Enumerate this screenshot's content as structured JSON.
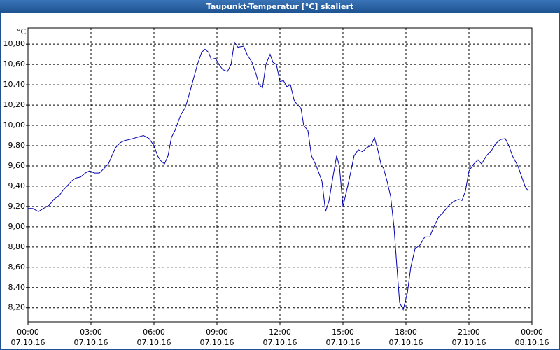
{
  "chart_data": {
    "type": "line",
    "title": "Taupunkt-Temperatur [°C] skaliert",
    "y_label": "°C",
    "color": "#0000b0",
    "grid": true,
    "xlim": [
      0,
      24
    ],
    "xticks": [
      {
        "value": 0,
        "label": "00:00",
        "sublabel": "07.10.16"
      },
      {
        "value": 3,
        "label": "03:00",
        "sublabel": "07.10.16"
      },
      {
        "value": 6,
        "label": "06:00",
        "sublabel": "07.10.16"
      },
      {
        "value": 9,
        "label": "09:00",
        "sublabel": "07.10.16"
      },
      {
        "value": 12,
        "label": "12:00",
        "sublabel": "07.10.16"
      },
      {
        "value": 15,
        "label": "15:00",
        "sublabel": "07.10.16"
      },
      {
        "value": 18,
        "label": "18:00",
        "sublabel": "07.10.16"
      },
      {
        "value": 21,
        "label": "21:00",
        "sublabel": "07.10.16"
      },
      {
        "value": 24,
        "label": "00:00",
        "sublabel": "08.10.16"
      }
    ],
    "ylim": [
      8.06,
      10.96
    ],
    "yticks": [
      {
        "value": 8.2,
        "label": "8,20"
      },
      {
        "value": 8.4,
        "label": "8,40"
      },
      {
        "value": 8.6,
        "label": "8,60"
      },
      {
        "value": 8.8,
        "label": "8,80"
      },
      {
        "value": 9.0,
        "label": "9,00"
      },
      {
        "value": 9.2,
        "label": "9,20"
      },
      {
        "value": 9.4,
        "label": "9,40"
      },
      {
        "value": 9.6,
        "label": "9,60"
      },
      {
        "value": 9.8,
        "label": "9,80"
      },
      {
        "value": 10.0,
        "label": "10,00"
      },
      {
        "value": 10.2,
        "label": "10,20"
      },
      {
        "value": 10.4,
        "label": "10,40"
      },
      {
        "value": 10.6,
        "label": "10,60"
      },
      {
        "value": 10.8,
        "label": "10,80"
      }
    ],
    "x": [
      0,
      0.23,
      0.5,
      0.73,
      1,
      1.23,
      1.5,
      1.67,
      1.9,
      2.07,
      2.27,
      2.5,
      2.73,
      2.93,
      3.17,
      3.4,
      3.6,
      3.83,
      4,
      4.17,
      4.4,
      4.6,
      4.83,
      5.17,
      5.5,
      5.77,
      6,
      6.17,
      6.33,
      6.5,
      6.67,
      6.83,
      7,
      7.27,
      7.5,
      7.67,
      7.87,
      8.07,
      8.27,
      8.43,
      8.6,
      8.73,
      8.93,
      9.1,
      9.27,
      9.5,
      9.67,
      9.83,
      10,
      10.27,
      10.43,
      10.67,
      10.87,
      11,
      11.17,
      11.33,
      11.53,
      11.67,
      11.83,
      12,
      12.17,
      12.33,
      12.5,
      12.67,
      12.83,
      13,
      13.13,
      13.33,
      13.5,
      13.73,
      14,
      14.17,
      14.33,
      14.53,
      14.7,
      14.83,
      15,
      15.17,
      15.33,
      15.53,
      15.73,
      15.93,
      16.13,
      16.33,
      16.5,
      16.67,
      16.83,
      16.93,
      17.1,
      17.27,
      17.43,
      17.57,
      17.7,
      17.87,
      18.07,
      18.23,
      18.43,
      18.67,
      18.9,
      19.13,
      19.33,
      19.57,
      19.77,
      20,
      20.27,
      20.5,
      20.67,
      20.83,
      21,
      21.23,
      21.43,
      21.6,
      21.83,
      22.07,
      22.27,
      22.5,
      22.73,
      22.9,
      23.07,
      23.33,
      23.5,
      23.67,
      23.83
    ],
    "values": [
      9.18,
      9.18,
      9.15,
      9.18,
      9.21,
      9.27,
      9.31,
      9.36,
      9.41,
      9.45,
      9.48,
      9.49,
      9.53,
      9.55,
      9.53,
      9.53,
      9.57,
      9.62,
      9.7,
      9.78,
      9.83,
      9.85,
      9.86,
      9.88,
      9.9,
      9.87,
      9.8,
      9.7,
      9.65,
      9.62,
      9.7,
      9.88,
      9.95,
      10.1,
      10.18,
      10.3,
      10.45,
      10.6,
      10.72,
      10.75,
      10.72,
      10.65,
      10.66,
      10.6,
      10.55,
      10.53,
      10.6,
      10.82,
      10.77,
      10.78,
      10.7,
      10.62,
      10.5,
      10.4,
      10.37,
      10.6,
      10.7,
      10.62,
      10.6,
      10.43,
      10.44,
      10.38,
      10.4,
      10.25,
      10.2,
      10.17,
      10.0,
      9.95,
      9.7,
      9.6,
      9.45,
      9.15,
      9.25,
      9.5,
      9.7,
      9.6,
      9.2,
      9.35,
      9.5,
      9.7,
      9.76,
      9.74,
      9.78,
      9.8,
      9.88,
      9.75,
      9.6,
      9.58,
      9.45,
      9.3,
      9.0,
      8.6,
      8.25,
      8.18,
      8.35,
      8.6,
      8.78,
      8.82,
      8.9,
      8.9,
      9.0,
      9.1,
      9.14,
      9.2,
      9.25,
      9.27,
      9.26,
      9.35,
      9.55,
      9.62,
      9.66,
      9.62,
      9.7,
      9.75,
      9.82,
      9.86,
      9.87,
      9.8,
      9.7,
      9.6,
      9.5,
      9.4,
      9.35
    ]
  }
}
